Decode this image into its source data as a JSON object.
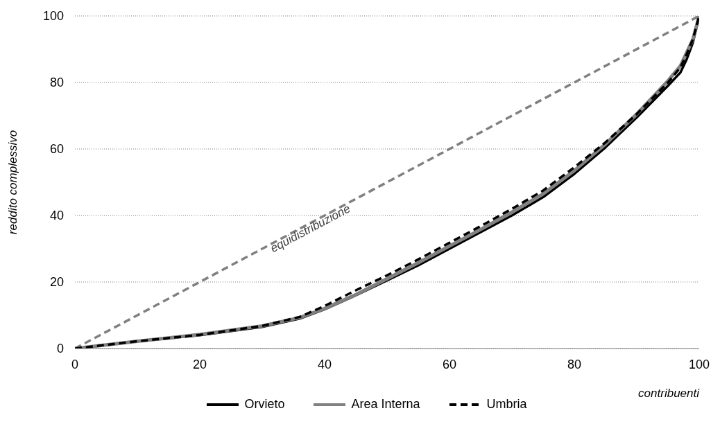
{
  "chart_data": {
    "type": "line",
    "xlabel": "contribuenti",
    "ylabel": "reddito complessivo",
    "xlim": [
      0,
      100
    ],
    "ylim": [
      0,
      100
    ],
    "xticks": [
      0,
      20,
      40,
      60,
      80,
      100
    ],
    "yticks": [
      0,
      20,
      40,
      60,
      80,
      100
    ],
    "grid": "y",
    "legend": "bottom",
    "marker": "none",
    "series": [
      {
        "name": "equidistribuzione",
        "color": "#808080",
        "line_style": "dashed",
        "x": [
          0,
          100
        ],
        "values": [
          0,
          100
        ]
      },
      {
        "name": "Orvieto",
        "color": "#000000",
        "line_style": "solid",
        "x": [
          0,
          5,
          10,
          20,
          30,
          36,
          40,
          45,
          50,
          55,
          60,
          65,
          70,
          75,
          80,
          85,
          90,
          95,
          97,
          98,
          99,
          100
        ],
        "values": [
          0,
          1.1,
          2.2,
          4,
          6.5,
          9,
          11.8,
          16,
          20.5,
          25,
          30,
          35,
          40,
          45.5,
          52.5,
          60.5,
          69.5,
          79,
          83,
          87,
          92,
          100
        ]
      },
      {
        "name": "Area Interna",
        "color": "#808080",
        "line_style": "solid",
        "x": [
          0,
          5,
          10,
          20,
          30,
          36,
          40,
          45,
          50,
          55,
          60,
          65,
          70,
          75,
          80,
          85,
          90,
          95,
          97,
          98,
          99,
          100
        ],
        "values": [
          0,
          1.1,
          2.2,
          4.2,
          6.8,
          9.3,
          12,
          16.2,
          21,
          25.8,
          30.8,
          35.8,
          41,
          46.5,
          53.5,
          61.5,
          70.5,
          80.5,
          85,
          89,
          93,
          100
        ]
      },
      {
        "name": "Umbria",
        "color": "#000000",
        "line_style": "dashed",
        "x": [
          0,
          5,
          10,
          20,
          30,
          36,
          40,
          45,
          50,
          55,
          60,
          65,
          70,
          75,
          80,
          85,
          90,
          95,
          97,
          98,
          99,
          100
        ],
        "values": [
          0,
          1.1,
          2.2,
          4.1,
          6.8,
          9.5,
          12.8,
          17.5,
          22,
          26.8,
          31.8,
          36.8,
          42,
          47.5,
          54.5,
          62,
          70.5,
          80,
          84.5,
          88.5,
          93,
          100
        ]
      }
    ]
  }
}
